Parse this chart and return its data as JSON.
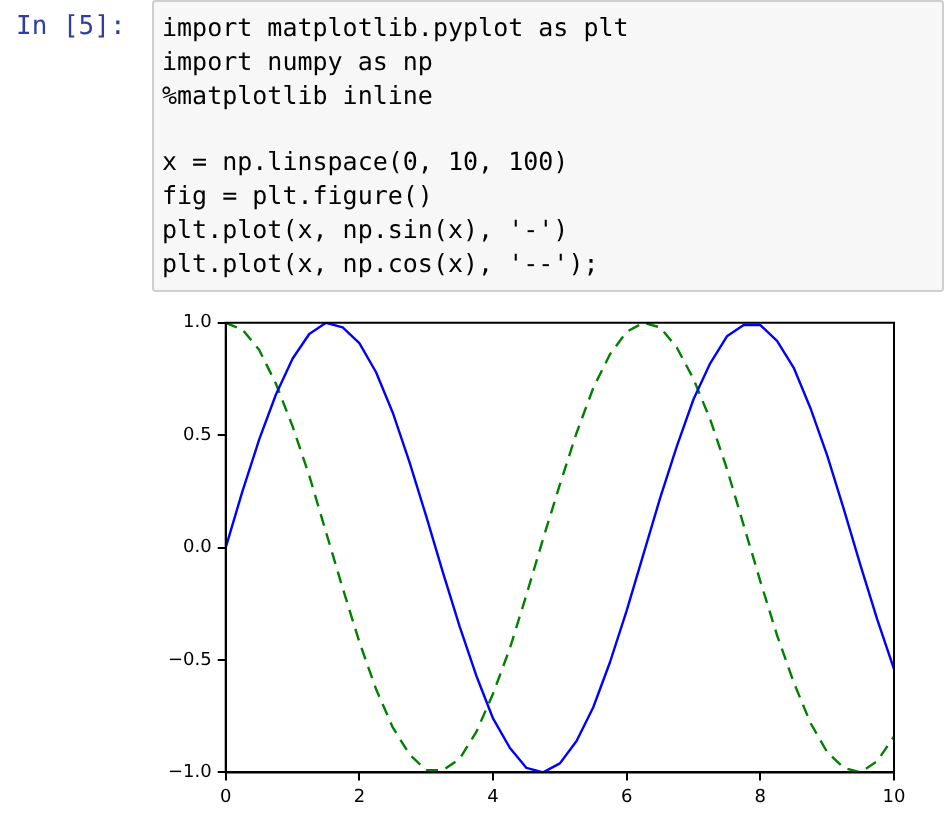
{
  "chart_data": {
    "type": "line",
    "annotations": [
      "In [5]:",
      "import matplotlib.pyplot as plt\nimport numpy as np\n%matplotlib inline\n\nx = np.linspace(0, 10, 100)\nfig = plt.figure()\nplt.plot(x, np.sin(x), '-')\nplt.plot(x, np.cos(x), '--');"
    ],
    "x": [
      0,
      0.25,
      0.5,
      0.75,
      1,
      1.25,
      1.5,
      1.75,
      2,
      2.25,
      2.5,
      2.75,
      3,
      3.25,
      3.5,
      3.75,
      4,
      4.25,
      4.5,
      4.75,
      5,
      5.25,
      5.5,
      5.75,
      6,
      6.25,
      6.5,
      6.75,
      7,
      7.25,
      7.5,
      7.75,
      8,
      8.25,
      8.5,
      8.75,
      9,
      9.25,
      9.5,
      9.75,
      10
    ],
    "series": [
      {
        "color": "#0000ff",
        "line_style": "solid",
        "values": [
          0,
          0.25,
          0.48,
          0.68,
          0.84,
          0.95,
          1.0,
          0.98,
          0.91,
          0.78,
          0.6,
          0.38,
          0.14,
          -0.11,
          -0.35,
          -0.57,
          -0.76,
          -0.89,
          -0.98,
          -1.0,
          -0.96,
          -0.86,
          -0.71,
          -0.51,
          -0.28,
          -0.03,
          0.22,
          0.45,
          0.66,
          0.82,
          0.94,
          0.99,
          0.99,
          0.92,
          0.8,
          0.62,
          0.41,
          0.17,
          -0.08,
          -0.32,
          -0.54
        ]
      },
      {
        "color": "#008000",
        "line_style": "dashed",
        "values": [
          1,
          0.97,
          0.88,
          0.73,
          0.54,
          0.32,
          0.07,
          -0.18,
          -0.42,
          -0.63,
          -0.8,
          -0.92,
          -0.99,
          -0.99,
          -0.94,
          -0.82,
          -0.65,
          -0.45,
          -0.21,
          0.04,
          0.28,
          0.51,
          0.71,
          0.86,
          0.96,
          1.0,
          0.98,
          0.89,
          0.75,
          0.57,
          0.35,
          0.1,
          -0.15,
          -0.39,
          -0.6,
          -0.78,
          -0.91,
          -0.98,
          -1.0,
          -0.95,
          -0.84
        ]
      }
    ],
    "xlim": [
      0,
      10
    ],
    "xticks": [
      0,
      2,
      4,
      6,
      8,
      10
    ],
    "ylim": [
      -1,
      1
    ],
    "yticks": [
      {
        "value": -1,
        "label": "−1.0"
      },
      {
        "value": -0.5,
        "label": "−0.5"
      },
      {
        "value": 0,
        "label": "0.0"
      },
      {
        "value": 0.5,
        "label": "0.5"
      },
      {
        "value": 1,
        "label": "1.0"
      }
    ],
    "grid": false,
    "legend": false,
    "marker": "none"
  }
}
